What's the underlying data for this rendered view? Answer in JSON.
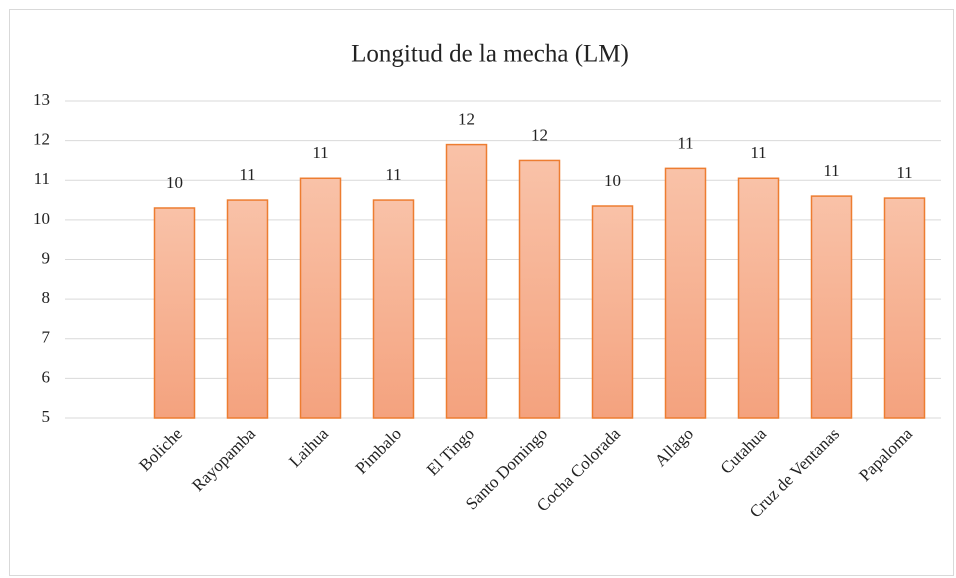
{
  "chart_data": {
    "type": "bar",
    "title": "Longitud de la mecha (LM)",
    "categories": [
      null,
      "Boliche",
      "Rayopamba",
      "Laihua",
      "Pimbalo",
      "El Tingo",
      "Santo Domingo",
      "Cocha Colorada",
      "Allago",
      "Cutahua",
      "Cruz de Ventanas",
      "Papaloma"
    ],
    "values": [
      null,
      10.3,
      10.5,
      11.05,
      10.5,
      11.9,
      11.5,
      10.35,
      11.3,
      11.05,
      10.6,
      10.55
    ],
    "value_labels": [
      null,
      "10",
      "11",
      "11",
      "11",
      "12",
      "12",
      "10",
      "11",
      "11",
      "11",
      "11"
    ],
    "color": "#f4a783",
    "ylim": [
      5,
      13
    ],
    "yticks": [
      5,
      6,
      7,
      8,
      9,
      10,
      11,
      12,
      13
    ],
    "grid": true
  }
}
